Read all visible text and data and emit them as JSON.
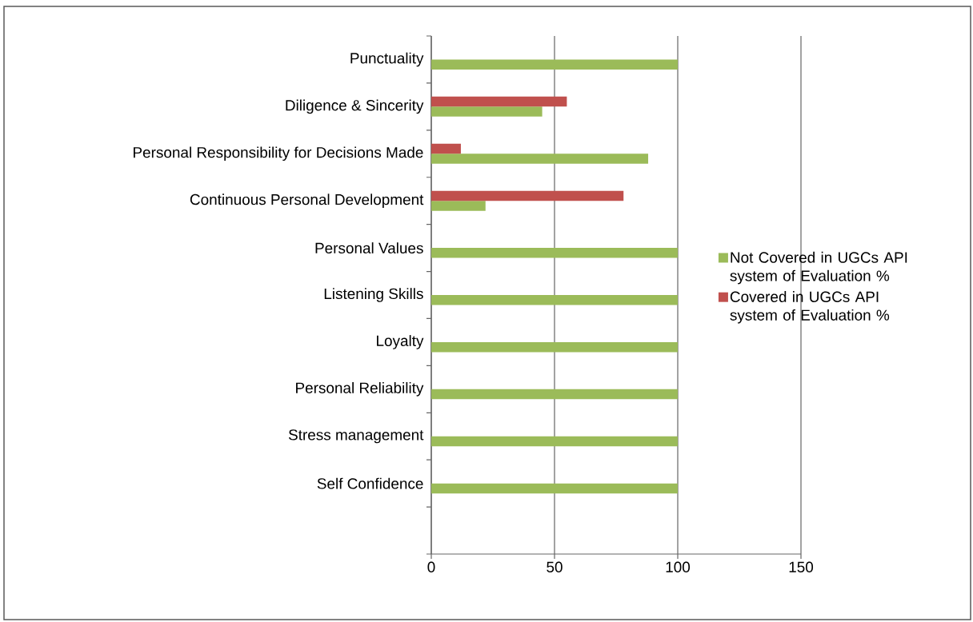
{
  "chart_data": {
    "type": "bar",
    "orientation": "horizontal",
    "categories": [
      "Punctuality",
      "Diligence & Sincerity",
      "Personal Responsibility for Decisions Made",
      "Continuous Personal Development",
      "Personal Values",
      "Listening Skills",
      "Loyalty",
      "Personal Reliability",
      "Stress management",
      "Self Confidence",
      null
    ],
    "series": [
      {
        "name": "Not Covered in UGCs API system of Evaluation %",
        "color": "#9bbb59",
        "values": [
          100,
          45,
          88,
          22,
          100,
          100,
          100,
          100,
          100,
          100,
          null
        ]
      },
      {
        "name": "Covered in UGCs  API system of Evaluation %",
        "color": "#c0504d",
        "values": [
          0,
          55,
          12,
          78,
          0,
          0,
          0,
          0,
          0,
          0,
          null
        ]
      }
    ],
    "xlim": [
      0,
      150
    ],
    "xticks": [
      0,
      50,
      100,
      150
    ],
    "grid": "x",
    "legend": "right"
  }
}
